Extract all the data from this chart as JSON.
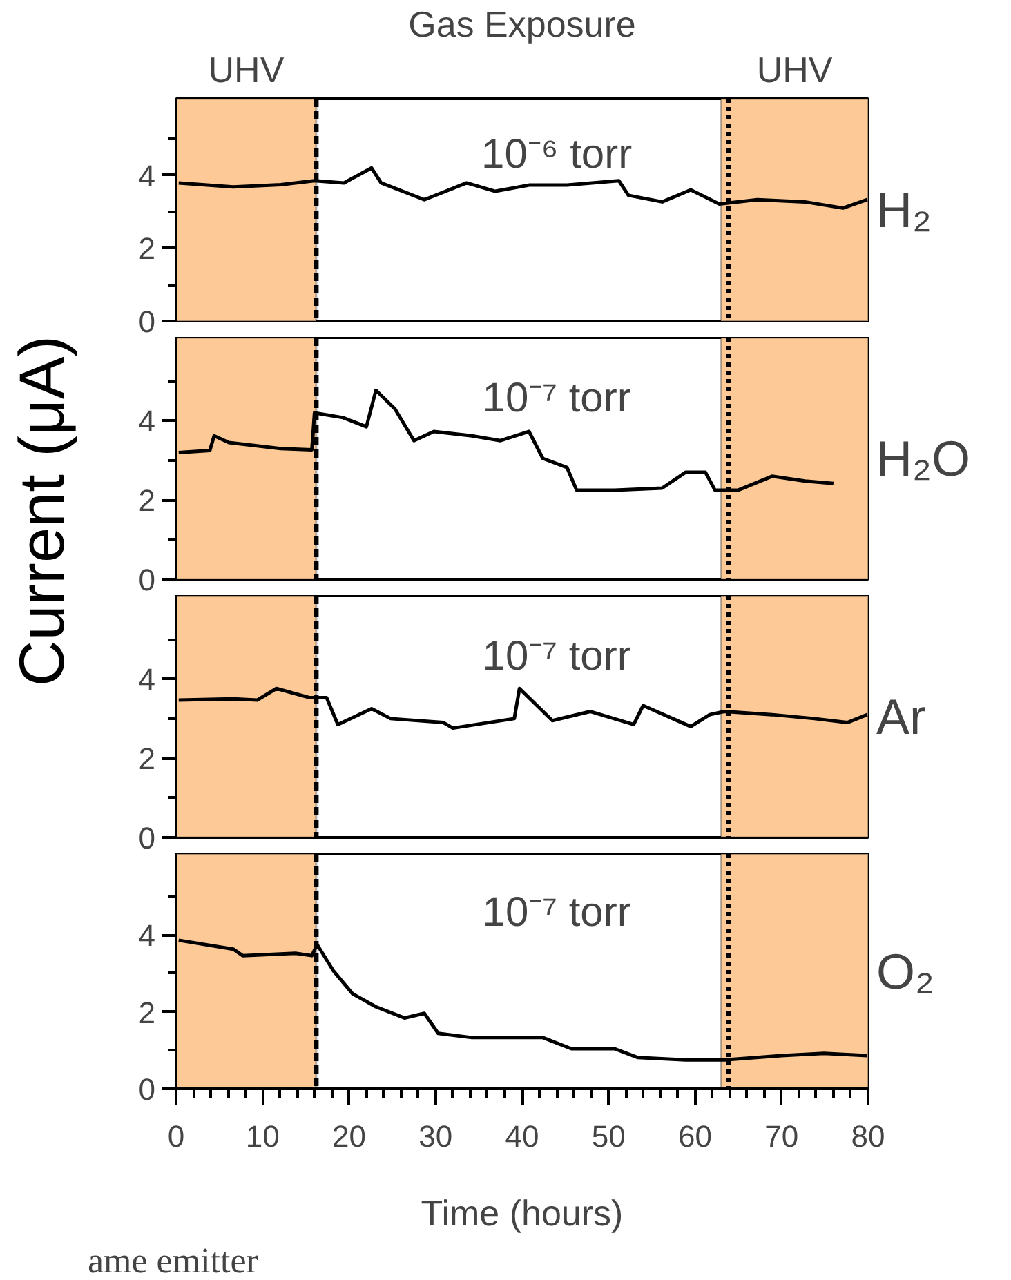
{
  "chart_data": [
    {
      "type": "line",
      "title": "Gas Exposure",
      "ylabel": "Current (μA)",
      "annotations": [
        "10⁻⁶ torr"
      ],
      "tick_labels": "y",
      "legend": false,
      "grid": false,
      "line_style": "solid",
      "marker": "none",
      "xlim": [
        0,
        80
      ],
      "ylim": [
        0,
        6.1
      ],
      "yticks": [
        0,
        {
          "value": 1,
          "label": null
        },
        2,
        {
          "value": 3,
          "label": null
        },
        4,
        {
          "value": 5,
          "label": null
        }
      ],
      "bands": [
        {
          "axis": "x",
          "from": 0,
          "to": 16.2,
          "label": "UHV",
          "color": "#fdca97"
        },
        {
          "axis": "x",
          "from": 63,
          "to": 80,
          "label": "UHV",
          "color": "#fdca97"
        }
      ],
      "ref_lines": [
        {
          "axis": "x",
          "value": 16.2,
          "line_style": "dashed"
        },
        {
          "axis": "x",
          "value": 63.9,
          "line_style": "dotted"
        }
      ],
      "series": [
        {
          "name": "H₂",
          "color": "#000000",
          "x": [
            0.3,
            6.6,
            12.1,
            16,
            19.4,
            22.6,
            23.7,
            28.7,
            33.6,
            36.9,
            40.8,
            45.2,
            51.2,
            52.3,
            56.2,
            59.5,
            62.8,
            67.2,
            72.7,
            77.1,
            79.9
          ],
          "values": [
            3.79,
            3.68,
            3.74,
            3.85,
            3.79,
            4.2,
            3.79,
            3.33,
            3.79,
            3.56,
            3.73,
            3.73,
            3.85,
            3.45,
            3.27,
            3.6,
            3.21,
            3.33,
            3.27,
            3.1,
            3.33
          ]
        }
      ]
    },
    {
      "type": "line",
      "annotations": [
        "10⁻⁷ torr"
      ],
      "tick_labels": "y",
      "legend": false,
      "grid": false,
      "line_style": "solid",
      "marker": "none",
      "xlim": [
        0,
        80
      ],
      "ylim": [
        0,
        6.1
      ],
      "yticks": [
        0,
        {
          "value": 1,
          "label": null
        },
        2,
        {
          "value": 3,
          "label": null
        },
        4,
        {
          "value": 5,
          "label": null
        }
      ],
      "bands": [
        {
          "axis": "x",
          "from": 0,
          "to": 16.2,
          "color": "#fdca97"
        },
        {
          "axis": "x",
          "from": 63,
          "to": 80,
          "color": "#fdca97"
        }
      ],
      "ref_lines": [
        {
          "axis": "x",
          "value": 16.2,
          "line_style": "dashed"
        },
        {
          "axis": "x",
          "value": 63.9,
          "line_style": "dotted"
        }
      ],
      "series": [
        {
          "name": "H₂O",
          "color": "#000000",
          "x": [
            0.3,
            3.9,
            4.4,
            6.1,
            12.1,
            15.7,
            16,
            19.3,
            22,
            23.1,
            25.3,
            27.5,
            29.8,
            34.2,
            37.5,
            40.8,
            42.4,
            45.2,
            46.3,
            50.7,
            56.2,
            58.9,
            61.2,
            62.3,
            65,
            68.9,
            72.7,
            76
          ],
          "values": [
            3.2,
            3.25,
            3.62,
            3.45,
            3.3,
            3.27,
            4.2,
            4.08,
            3.85,
            4.77,
            4.3,
            3.5,
            3.73,
            3.62,
            3.5,
            3.73,
            3.05,
            2.82,
            2.25,
            2.25,
            2.3,
            2.7,
            2.7,
            2.25,
            2.25,
            2.6,
            2.48,
            2.42
          ]
        }
      ]
    },
    {
      "type": "line",
      "annotations": [
        "10⁻⁷ torr"
      ],
      "tick_labels": "y",
      "legend": false,
      "grid": false,
      "line_style": "solid",
      "marker": "none",
      "xlim": [
        0,
        80
      ],
      "ylim": [
        0,
        6.1
      ],
      "yticks": [
        0,
        {
          "value": 1,
          "label": null
        },
        2,
        {
          "value": 3,
          "label": null
        },
        4,
        {
          "value": 5,
          "label": null
        }
      ],
      "bands": [
        {
          "axis": "x",
          "from": 0,
          "to": 16.2,
          "color": "#fdca97"
        },
        {
          "axis": "x",
          "from": 63,
          "to": 80,
          "color": "#fdca97"
        }
      ],
      "ref_lines": [
        {
          "axis": "x",
          "value": 16.2,
          "line_style": "dashed"
        },
        {
          "axis": "x",
          "value": 63.9,
          "line_style": "dotted"
        }
      ],
      "series": [
        {
          "name": "Ar",
          "color": "#000000",
          "x": [
            0.3,
            6.6,
            9.4,
            11.6,
            15.4,
            17.4,
            18.7,
            22.6,
            24.8,
            30.9,
            32,
            39.1,
            39.7,
            41.3,
            43.5,
            47.9,
            52.9,
            54,
            59.5,
            61.7,
            63.4,
            68.9,
            73.8,
            77.6,
            79.9
          ],
          "values": [
            3.47,
            3.5,
            3.47,
            3.76,
            3.53,
            3.53,
            2.85,
            3.25,
            3.0,
            2.9,
            2.76,
            3.0,
            3.76,
            3.42,
            2.95,
            3.18,
            2.85,
            3.33,
            2.8,
            3.1,
            3.18,
            3.1,
            3.0,
            2.9,
            3.1
          ]
        }
      ]
    },
    {
      "type": "line",
      "xlabel": "Time (hours)",
      "annotations": [
        "10⁻⁷ torr",
        "ame emitter"
      ],
      "legend": false,
      "grid": false,
      "line_style": "solid",
      "marker": "none",
      "xlim": [
        0,
        80
      ],
      "ylim": [
        0,
        6.1
      ],
      "yticks": [
        0,
        {
          "value": 1,
          "label": null
        },
        2,
        {
          "value": 3,
          "label": null
        },
        4,
        {
          "value": 5,
          "label": null
        }
      ],
      "xticks": [
        0,
        {
          "value": 2,
          "label": null
        },
        {
          "value": 4,
          "label": null
        },
        {
          "value": 6,
          "label": null
        },
        {
          "value": 8,
          "label": null
        },
        10,
        {
          "value": 12,
          "label": null
        },
        {
          "value": 14,
          "label": null
        },
        {
          "value": 16,
          "label": null
        },
        {
          "value": 18,
          "label": null
        },
        20,
        {
          "value": 22,
          "label": null
        },
        {
          "value": 24,
          "label": null
        },
        {
          "value": 26,
          "label": null
        },
        {
          "value": 28,
          "label": null
        },
        30,
        {
          "value": 32,
          "label": null
        },
        {
          "value": 34,
          "label": null
        },
        {
          "value": 36,
          "label": null
        },
        {
          "value": 38,
          "label": null
        },
        40,
        {
          "value": 42,
          "label": null
        },
        {
          "value": 44,
          "label": null
        },
        {
          "value": 46,
          "label": null
        },
        {
          "value": 48,
          "label": null
        },
        50,
        {
          "value": 52,
          "label": null
        },
        {
          "value": 54,
          "label": null
        },
        {
          "value": 56,
          "label": null
        },
        {
          "value": 58,
          "label": null
        },
        60,
        {
          "value": 62,
          "label": null
        },
        {
          "value": 64,
          "label": null
        },
        {
          "value": 66,
          "label": null
        },
        {
          "value": 68,
          "label": null
        },
        70,
        {
          "value": 72,
          "label": null
        },
        {
          "value": 74,
          "label": null
        },
        {
          "value": 76,
          "label": null
        },
        {
          "value": 78,
          "label": null
        },
        80
      ],
      "bands": [
        {
          "axis": "x",
          "from": 0,
          "to": 16.2,
          "color": "#fdca97"
        },
        {
          "axis": "x",
          "from": 63,
          "to": 80,
          "color": "#fdca97"
        }
      ],
      "ref_lines": [
        {
          "axis": "x",
          "value": 16.2,
          "line_style": "dashed"
        },
        {
          "axis": "x",
          "value": 63.9,
          "line_style": "dotted"
        }
      ],
      "series": [
        {
          "name": "O₂",
          "color": "#000000",
          "x": [
            0.3,
            6.6,
            7.7,
            13.8,
            15.7,
            16.3,
            18.2,
            20.4,
            23.1,
            26.4,
            28.7,
            30.3,
            34.2,
            42.4,
            45.7,
            50.7,
            53.4,
            58.9,
            63.4,
            70,
            74.9,
            79.9
          ],
          "values": [
            3.86,
            3.63,
            3.46,
            3.52,
            3.46,
            3.75,
            3.06,
            2.47,
            2.13,
            1.84,
            1.96,
            1.44,
            1.33,
            1.33,
            1.04,
            1.04,
            0.81,
            0.75,
            0.75,
            0.86,
            0.92,
            0.86
          ]
        }
      ]
    }
  ]
}
